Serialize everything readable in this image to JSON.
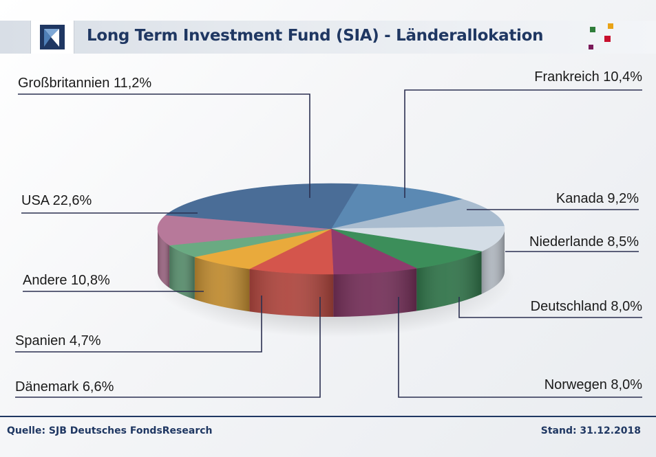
{
  "header": {
    "title": "Long Term Investment Fund (SIA) - Länderallokation"
  },
  "footer": {
    "source": "Quelle: SJB Deutsches FondsResearch",
    "stand": "Stand: 31.12.2018"
  },
  "colors": {
    "title": "#1f3762",
    "leader_line": "#2a2f50",
    "brand_squares": [
      "#2f7d3a",
      "#e8a317",
      "#c8102e",
      "#7a1a5a"
    ]
  },
  "chart_data": {
    "type": "pie",
    "title": "Long Term Investment Fund (SIA) - Länderallokation",
    "unit": "%",
    "style": "3d",
    "slices": [
      {
        "label": "Großbritannien",
        "value": 11.2,
        "display": "Großbritannien 11,2%",
        "color": "#5b89b3"
      },
      {
        "label": "Frankreich",
        "value": 10.4,
        "display": "Frankreich 10,4%",
        "color": "#a9bccf"
      },
      {
        "label": "Kanada",
        "value": 9.2,
        "display": "Kanada 9,2%",
        "color": "#d4dde6"
      },
      {
        "label": "Niederlande",
        "value": 8.5,
        "display": "Niederlande 8,5%",
        "color": "#3c8e5a"
      },
      {
        "label": "Deutschland",
        "value": 8.0,
        "display": "Deutschland 8,0%",
        "color": "#8f3b6d"
      },
      {
        "label": "Norwegen",
        "value": 8.0,
        "display": "Norwegen 8,0%",
        "color": "#d4554c"
      },
      {
        "label": "Dänemark",
        "value": 6.6,
        "display": "Dänemark 6,6%",
        "color": "#e9aa3c"
      },
      {
        "label": "Spanien",
        "value": 4.7,
        "display": "Spanien 4,7%",
        "color": "#6aaa82"
      },
      {
        "label": "Andere",
        "value": 10.8,
        "display": "Andere 10,8%",
        "color": "#b7799a"
      },
      {
        "label": "USA",
        "value": 22.6,
        "display": "USA 22,6%",
        "color": "#4a6d97"
      }
    ]
  }
}
